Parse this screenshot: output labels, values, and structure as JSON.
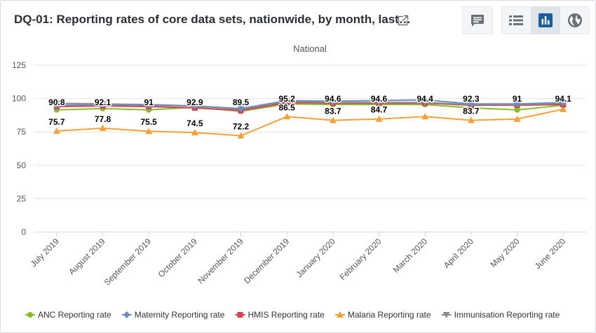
{
  "header": {
    "title": "DQ-01: Reporting rates of core data sets, nationwide, by month, last…",
    "open_icon": "external-link-icon",
    "buttons": [
      {
        "name": "interpretations-button",
        "icon": "chat-bubble-icon"
      },
      {
        "name": "table-view-button",
        "icon": "list-icon"
      },
      {
        "name": "chart-view-button",
        "icon": "bar-chart-icon",
        "active": true
      },
      {
        "name": "map-view-button",
        "icon": "globe-icon"
      }
    ]
  },
  "colors": {
    "ANC": "#8bbb29",
    "Maternity": "#6c8ebf",
    "HMIS": "#d2424f",
    "Malaria": "#f7a035",
    "Immunisation": "#8c8c8c",
    "active_button": "#1b5e9d"
  },
  "chart_data": {
    "type": "line",
    "subtitle": "National",
    "categories": [
      "July 2019",
      "August 2019",
      "September 2019",
      "October 2019",
      "November 2019",
      "December 2019",
      "January 2020",
      "February 2020",
      "March 2020",
      "April 2020",
      "May 2020",
      "June 2020"
    ],
    "ylim": [
      0,
      125
    ],
    "yticks": [
      "0",
      "25",
      "50",
      "75",
      "100",
      "125"
    ],
    "grid": true,
    "legend_position": "bottom",
    "series": [
      {
        "name": "ANC Reporting rate",
        "key": "ANC",
        "marker": "circle",
        "values": [
          91.5,
          92.5,
          91.5,
          93.5,
          90.5,
          96.0,
          95.5,
          95.5,
          95.5,
          93.0,
          91.5,
          95.0
        ]
      },
      {
        "name": "Maternity Reporting rate",
        "key": "Maternity",
        "marker": "diamond",
        "values": [
          95.0,
          95.5,
          95.0,
          94.5,
          92.5,
          98.5,
          98.0,
          98.5,
          99.0,
          96.0,
          96.0,
          97.0
        ]
      },
      {
        "name": "HMIS Reporting rate",
        "key": "HMIS",
        "marker": "square",
        "values": [
          94.0,
          94.5,
          94.0,
          93.0,
          91.0,
          97.0,
          96.5,
          96.5,
          96.5,
          95.0,
          95.0,
          95.5
        ]
      },
      {
        "name": "Malaria Reporting rate",
        "key": "Malaria",
        "marker": "triangle",
        "values": [
          75.7,
          77.8,
          75.5,
          74.5,
          72.2,
          86.5,
          83.7,
          84.7,
          86.5,
          83.7,
          84.7,
          92.0
        ],
        "labels": [
          "75.7",
          "77.8",
          "75.5",
          "74.5",
          "72.2",
          "86.5",
          "83.7",
          "84.7",
          "",
          "83.7",
          "",
          ""
        ]
      },
      {
        "name": "Immunisation Reporting rate",
        "key": "Immunisation",
        "marker": "triangle-down",
        "values": [
          96.5,
          96.0,
          95.5,
          94.5,
          92.0,
          98.0,
          97.0,
          97.0,
          97.0,
          95.5,
          95.5,
          96.5
        ]
      }
    ],
    "top_labels": [
      "90.8",
      "92.1",
      "91",
      "92.9",
      "89.5",
      "95.2",
      "94.6",
      "94.6",
      "94.4",
      "92.3",
      "91",
      "94.1"
    ]
  }
}
